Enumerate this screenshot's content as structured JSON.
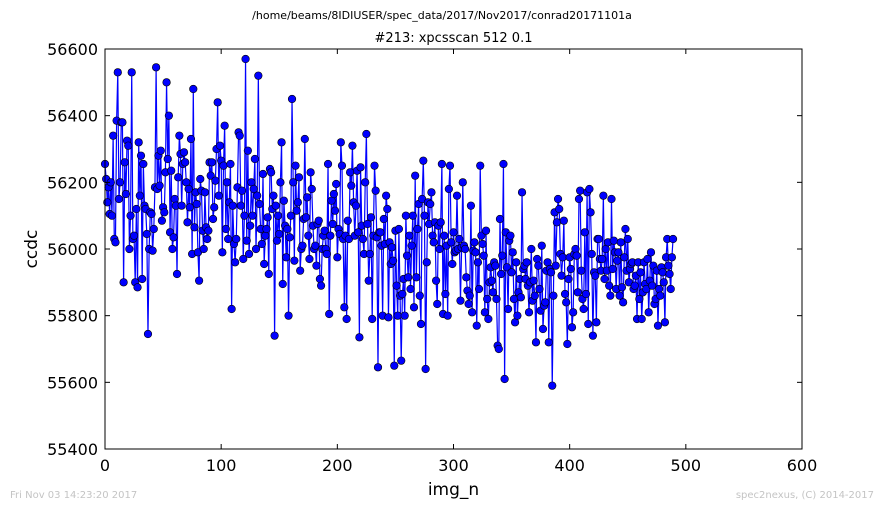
{
  "header": {
    "path": "/home/beams/8IDIUSER/spec_data/2017/Nov2017/conrad20171101a"
  },
  "footer": {
    "timestamp": "Fri Nov 03 14:23:20 2017",
    "credit": "spec2nexus, (C) 2014-2017"
  },
  "colors": {
    "series": "#0000ff",
    "frame": "#000000",
    "background": "#ffffff",
    "footer_text": "#c4c4c4"
  },
  "chart_data": {
    "type": "line",
    "title": "#213: xpcsscan 512 0.1",
    "xlabel": "img_n",
    "ylabel": "ccdc",
    "xlim": [
      0,
      600
    ],
    "ylim": [
      55400,
      56600
    ],
    "xticks": [
      0,
      100,
      200,
      300,
      400,
      500,
      600
    ],
    "yticks": [
      55400,
      55600,
      55800,
      56000,
      56200,
      56400,
      56600
    ],
    "grid": false,
    "marker": "circle",
    "series": [
      {
        "y": [
          56255,
          56210,
          56140,
          56185,
          56105,
          56200,
          56100,
          56340,
          56030,
          56020,
          56385,
          56530,
          56150,
          56200,
          56380,
          56380,
          55900,
          56260,
          56165,
          56325,
          56310,
          56000,
          56100,
          56530,
          56030,
          56040,
          55900,
          56120,
          55885,
          56320,
          56160,
          56280,
          55910,
          56255,
          56130,
          56120,
          56045,
          55745,
          56000,
          56110,
          56105,
          55995,
          56060,
          56185,
          56545,
          56180,
          56280,
          56190,
          56295,
          56085,
          56125,
          56110,
          56230,
          56500,
          56270,
          56400,
          56050,
          56235,
          56000,
          56035,
          56150,
          56130,
          55925,
          56215,
          56340,
          56285,
          56130,
          56255,
          56290,
          56260,
          56200,
          56080,
          56180,
          56125,
          56330,
          55985,
          56480,
          56065,
          56170,
          56135,
          55990,
          55905,
          56210,
          56175,
          56055,
          56000,
          56170,
          56065,
          56030,
          56055,
          56260,
          56220,
          56260,
          56090,
          56125,
          56205,
          56300,
          56440,
          56160,
          56310,
          56265,
          55990,
          56250,
          56370,
          56060,
          56200,
          56030,
          56140,
          56255,
          55820,
          56130,
          56015,
          55960,
          56030,
          56185,
          56350,
          56340,
          56130,
          56175,
          55970,
          56100,
          56570,
          56025,
          56295,
          55985,
          56070,
          56200,
          56100,
          56180,
          56270,
          56000,
          56160,
          56520,
          56135,
          56060,
          56015,
          56225,
          55955,
          56040,
          56060,
          56095,
          55925,
          56240,
          56230,
          56120,
          56160,
          55740,
          56130,
          56025,
          56100,
          56045,
          56200,
          56320,
          55895,
          56145,
          56070,
          55975,
          56060,
          55800,
          56035,
          56100,
          56450,
          56200,
          55965,
          56250,
          56115,
          56140,
          56215,
          55935,
          56000,
          56010,
          56090,
          56330,
          56095,
          56155,
          56040,
          55970,
          56230,
          56180,
          56070,
          56000,
          56010,
          55950,
          56075,
          56085,
          55910,
          55890,
          56000,
          56040,
          56055,
          56000,
          55985,
          56255,
          55805,
          56040,
          56145,
          56075,
          56165,
          56115,
          56195,
          55975,
          56060,
          56045,
          56320,
          56250,
          56030,
          55825,
          56040,
          55790,
          56085,
          56030,
          56230,
          56190,
          56310,
          56140,
          56040,
          56130,
          56235,
          56050,
          55735,
          56245,
          56070,
          56030,
          55985,
          56200,
          56345,
          56075,
          55905,
          55985,
          56095,
          55790,
          56040,
          56250,
          56175,
          56035,
          55645,
          56050,
          56050,
          56010,
          55800,
          56090,
          56015,
          56160,
          56120,
          55795,
          56020,
          55955,
          56005,
          55965,
          55650,
          56055,
          55890,
          55800,
          56060,
          55860,
          55665,
          55865,
          55910,
          55800,
          56100,
          55980,
          55915,
          56040,
          55880,
          56010,
          56100,
          55825,
          56220,
          55915,
          56060,
          56135,
          55860,
          55775,
          56150,
          56265,
          56100,
          55640,
          55960,
          56140,
          56075,
          56135,
          56170,
          56040,
          56020,
          56080,
          55905,
          55835,
          56070,
          56000,
          56080,
          56255,
          55805,
          56040,
          55865,
          56010,
          55800,
          56180,
          56250,
          56020,
          55955,
          56050,
          55990,
          55995,
          56160,
          56000,
          56030,
          55845,
          56005,
          56200,
          56010,
          56000,
          55915,
          55875,
          55835,
          55860,
          56130,
          55810,
          55995,
          56020,
          55990,
          55770,
          55960,
          55880,
          56250,
          56040,
          56015,
          55980,
          55810,
          56055,
          55850,
          55790,
          55900,
          55945,
          55905,
          55870,
          55960,
          55950,
          55850,
          55710,
          55700,
          56090,
          55925,
          55980,
          56255,
          55610,
          56050,
          55945,
          55820,
          56025,
          56040,
          55930,
          55990,
          55850,
          55780,
          55960,
          55800,
          55870,
          55910,
          55855,
          56170,
          55940,
          55950,
          55910,
          55960,
          55890,
          55810,
          55900,
          56000,
          55845,
          55905,
          55860,
          55720,
          55970,
          55950,
          55880,
          55815,
          56010,
          55760,
          55830,
          55840,
          55935,
          55960,
          55720,
          55940,
          55930,
          55590,
          55860,
          56110,
          55950,
          56080,
          56150,
          56120,
          55985,
          55920,
          55975,
          56085,
          55865,
          55840,
          55715,
          55910,
          55975,
          55940,
          55765,
          55810,
          55985,
          56000,
          55980,
          55870,
          56150,
          56175,
          55935,
          55850,
          55820,
          56050,
          55865,
          56170,
          55775,
          56180,
          56110,
          55985,
          55740,
          55930,
          55920,
          55780,
          56030,
          56030,
          55970,
          55935,
          55970,
          56160,
          55910,
          56000,
          55935,
          56020,
          55890,
          55860,
          56150,
          55940,
          56025,
          55990,
          55880,
          55965,
          55990,
          55860,
          56020,
          55885,
          55840,
          55975,
          56060,
          55935,
          56030,
          55900,
          55940,
          55955,
          55960,
          55880,
          55890,
          55920,
          55790,
          55960,
          55850,
          55930,
          55790,
          55870,
          55960,
          55895,
          55880,
          55970,
          55810,
          55905,
          55990,
          55890,
          55950,
          55835,
          55850,
          55935,
          55770,
          55880,
          55860,
          55945,
          55930,
          55900,
          55780,
          55975,
          56030,
          55950,
          55925,
          55880,
          55975,
          56030
        ]
      }
    ]
  }
}
